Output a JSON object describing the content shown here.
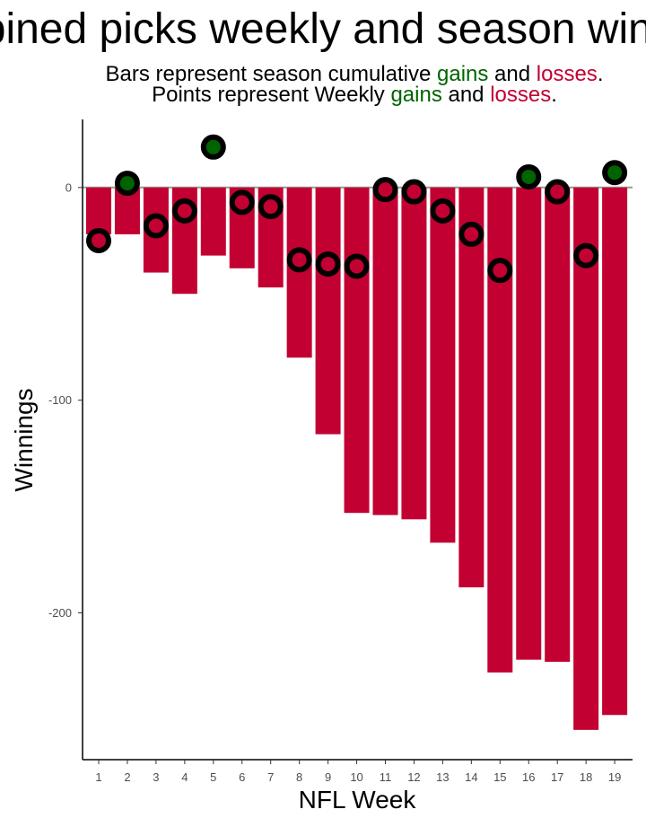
{
  "chart_data": {
    "type": "bar",
    "title": "Combined picks weekly and season winnings",
    "subtitle": {
      "line1": {
        "prefix": "Bars represent season cumulative ",
        "gains": "gains",
        "mid": " and ",
        "losses": "losses",
        "end": "."
      },
      "line2": {
        "prefix": "Points represent Weekly ",
        "gains": "gains",
        "mid": " and ",
        "losses": "losses",
        "end": "."
      }
    },
    "xlabel": "NFL Week",
    "ylabel": "Winnings",
    "categories": [
      "1",
      "2",
      "3",
      "4",
      "5",
      "6",
      "7",
      "8",
      "9",
      "10",
      "11",
      "12",
      "13",
      "14",
      "15",
      "16",
      "17",
      "18",
      "19"
    ],
    "ylim": [
      -269,
      32
    ],
    "yticks": [
      0,
      -100,
      -200
    ],
    "series": [
      {
        "values": [
          -22,
          -22,
          -40,
          -50,
          -32,
          -38,
          -47,
          -80,
          -116,
          -153,
          -154,
          -156,
          -167,
          -188,
          -228,
          -222,
          -223,
          -255,
          -248
        ]
      },
      {
        "values": [
          -25,
          2,
          -18,
          -11,
          19,
          -7,
          -9,
          -34,
          -36,
          -37,
          -1,
          -2,
          -11,
          -22,
          -39,
          5,
          -2,
          -32,
          7
        ]
      }
    ],
    "colors": {
      "gain": "#006400",
      "loss": "#c20032",
      "point_outline": "#000000",
      "zero_line": "#999999"
    },
    "grid": false,
    "legend": "none"
  }
}
